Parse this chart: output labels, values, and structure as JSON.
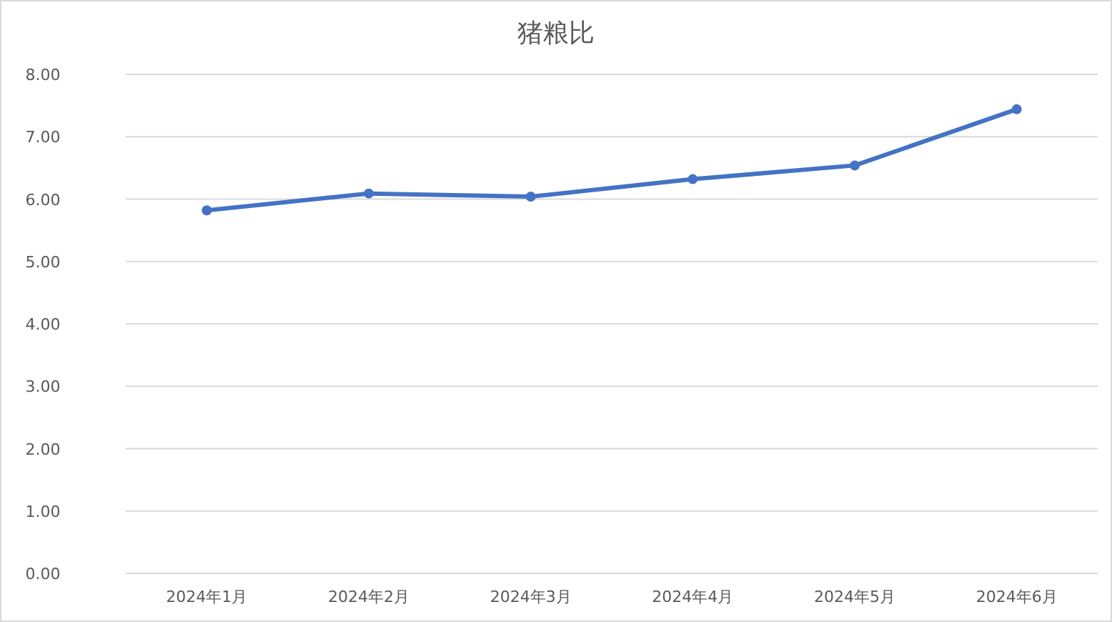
{
  "chart_data": {
    "type": "line",
    "title": "猪粮比",
    "categories": [
      "2024年1月",
      "2024年2月",
      "2024年3月",
      "2024年4月",
      "2024年5月",
      "2024年6月"
    ],
    "series": [
      {
        "color": "#4472c4",
        "values": [
          5.82,
          6.09,
          6.04,
          6.32,
          6.54,
          7.44
        ]
      }
    ],
    "ylim": [
      0,
      8
    ],
    "yticks": [
      {
        "value": 0,
        "label": "0.00"
      },
      {
        "value": 1,
        "label": "1.00"
      },
      {
        "value": 2,
        "label": "2.00"
      },
      {
        "value": 3,
        "label": "3.00"
      },
      {
        "value": 4,
        "label": "4.00"
      },
      {
        "value": 5,
        "label": "5.00"
      },
      {
        "value": 6,
        "label": "6.00"
      },
      {
        "value": 7,
        "label": "7.00"
      },
      {
        "value": 8,
        "label": "8.00"
      }
    ],
    "grid": "y",
    "marker": "circle",
    "line_style": "solid"
  }
}
